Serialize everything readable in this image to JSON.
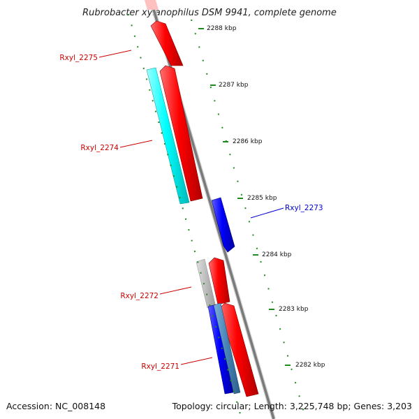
{
  "title": "Rubrobacter xylanophilus DSM 9941, complete genome",
  "accession": "Accession: NC_008148",
  "topology": "Topology: circular; Length: 3,225,748 bp; Genes: 3,203",
  "colors": {
    "forward_gene": "#ff0000",
    "reverse_gene": "#0000ff",
    "cyan_feature": "#00ffff",
    "gray_feature": "#b8b8b8",
    "steel_feature": "#4682b4",
    "backbone": "#888888",
    "tick": "#1e8c1e",
    "red_label": "#cc0000",
    "blue_label": "#0000cc"
  },
  "scale": {
    "ticks": [
      {
        "kbp": 2288,
        "label": "2288 kbp"
      },
      {
        "kbp": 2287,
        "label": "2287 kbp"
      },
      {
        "kbp": 2286,
        "label": "2286 kbp"
      },
      {
        "kbp": 2285,
        "label": "2285 kbp"
      },
      {
        "kbp": 2284,
        "label": "2284 kbp"
      },
      {
        "kbp": 2283,
        "label": "2283 kbp"
      },
      {
        "kbp": 2282,
        "label": "2282 kbp"
      }
    ]
  },
  "genes": [
    {
      "id": "Rxyl_2275",
      "label": "Rxyl_2275",
      "strand": "forward"
    },
    {
      "id": "Rxyl_2274",
      "label": "Rxyl_2274",
      "strand": "forward"
    },
    {
      "id": "Rxyl_2273",
      "label": "Rxyl_2273",
      "strand": "reverse"
    },
    {
      "id": "Rxyl_2272",
      "label": "Rxyl_2272",
      "strand": "forward"
    },
    {
      "id": "Rxyl_2271",
      "label": "Rxyl_2271",
      "strand": "forward"
    }
  ]
}
